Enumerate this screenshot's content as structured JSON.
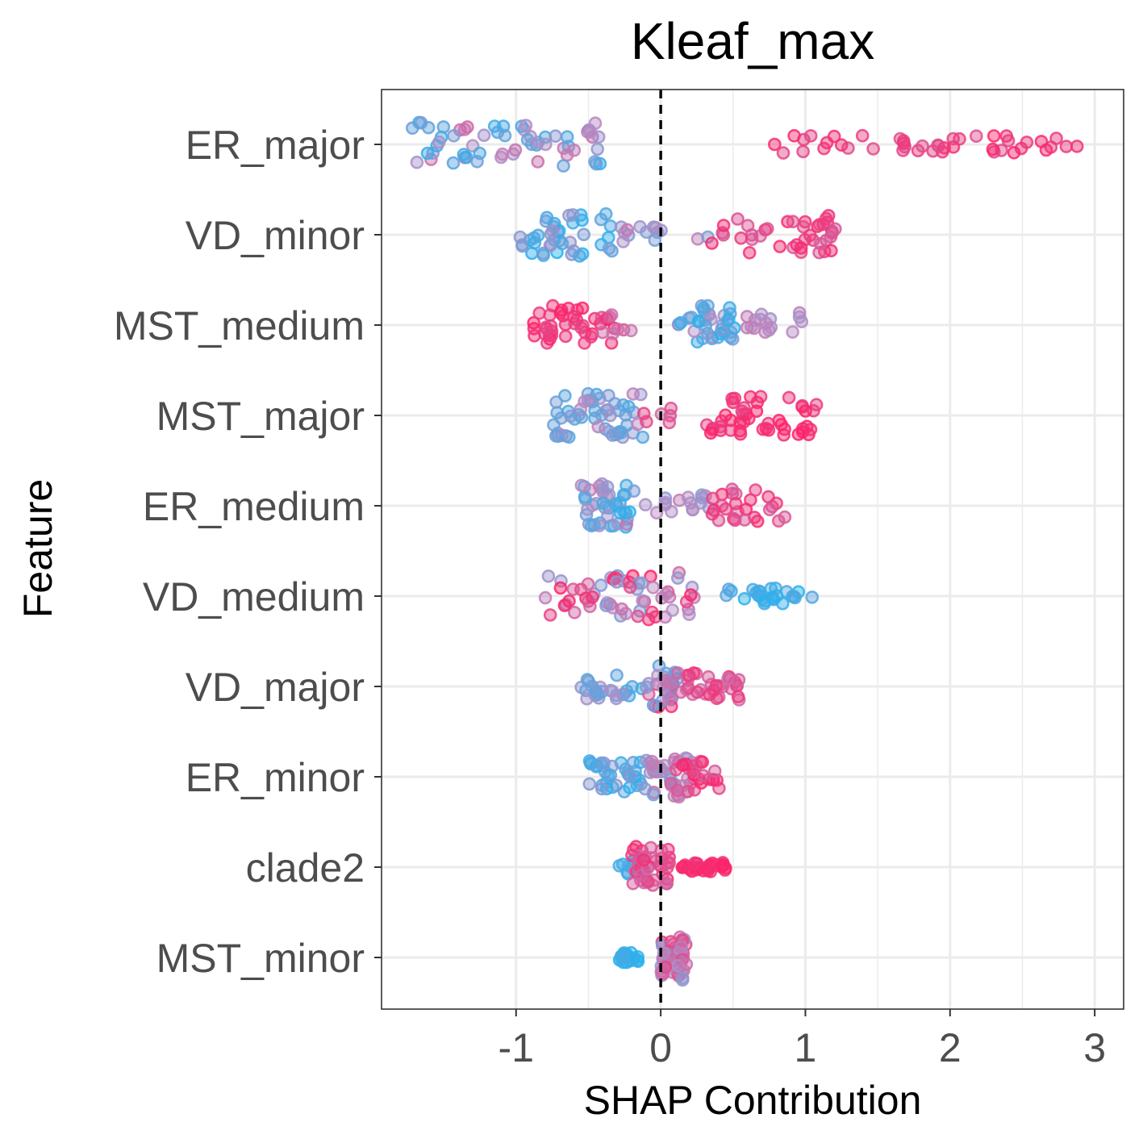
{
  "chart_data": {
    "type": "scatter",
    "subtype": "shap-beeswarm",
    "title": "Kleaf_max",
    "xlabel": "SHAP Contribution",
    "ylabel": "Feature",
    "xlim": [
      -1.93,
      3.2
    ],
    "x_ticks": [
      -1,
      0,
      1,
      2,
      3
    ],
    "x_tick_labels": [
      "-1",
      "0",
      "1",
      "2",
      "3"
    ],
    "reference_line": {
      "x": 0,
      "style": "dashed",
      "color": "#000000"
    },
    "grid": true,
    "legend": "none",
    "color_scale": {
      "low": "#1fb4f0",
      "mid": "#b58cc4",
      "high": "#ff1f66"
    },
    "features": [
      {
        "name": "ER_major",
        "clusters": [
          {
            "x_min": -1.72,
            "x_max": -0.35,
            "n": 60,
            "levels": [
              0.05,
              0.65
            ],
            "spread": 0.4
          },
          {
            "x_min": 0.78,
            "x_max": 2.97,
            "n": 44,
            "levels": [
              0.78,
              0.97
            ],
            "spread": 0.17
          }
        ]
      },
      {
        "name": "VD_minor",
        "clusters": [
          {
            "x_min": -0.98,
            "x_max": -0.33,
            "n": 42,
            "levels": [
              0.0,
              0.45
            ],
            "spread": 0.4
          },
          {
            "x_min": -0.32,
            "x_max": 0.35,
            "n": 14,
            "levels": [
              0.3,
              0.6
            ],
            "spread": 0.15
          },
          {
            "x_min": 0.35,
            "x_max": 1.22,
            "n": 40,
            "levels": [
              0.7,
              0.95
            ],
            "spread": 0.35
          }
        ]
      },
      {
        "name": "MST_medium",
        "clusters": [
          {
            "x_min": -0.88,
            "x_max": -0.3,
            "n": 38,
            "levels": [
              0.82,
              1.0
            ],
            "spread": 0.35
          },
          {
            "x_min": -0.42,
            "x_max": -0.18,
            "n": 8,
            "levels": [
              0.6,
              0.8
            ],
            "spread": 0.2
          },
          {
            "x_min": 0.12,
            "x_max": 0.52,
            "n": 36,
            "levels": [
              0.0,
              0.5
            ],
            "spread": 0.35
          },
          {
            "x_min": 0.55,
            "x_max": 0.98,
            "n": 16,
            "levels": [
              0.4,
              0.6
            ],
            "spread": 0.22
          }
        ]
      },
      {
        "name": "MST_major",
        "clusters": [
          {
            "x_min": -0.74,
            "x_max": -0.12,
            "n": 52,
            "levels": [
              0.05,
              0.55
            ],
            "spread": 0.4
          },
          {
            "x_min": -0.12,
            "x_max": 0.08,
            "n": 6,
            "levels": [
              0.65,
              0.85
            ],
            "spread": 0.15
          },
          {
            "x_min": 0.3,
            "x_max": 1.1,
            "n": 46,
            "levels": [
              0.85,
              1.0
            ],
            "spread": 0.35
          }
        ]
      },
      {
        "name": "ER_medium",
        "clusters": [
          {
            "x_min": -0.55,
            "x_max": -0.18,
            "n": 42,
            "levels": [
              0.0,
              0.6
            ],
            "spread": 0.4
          },
          {
            "x_min": -0.15,
            "x_max": 0.35,
            "n": 16,
            "levels": [
              0.35,
              0.6
            ],
            "spread": 0.2
          },
          {
            "x_min": 0.35,
            "x_max": 0.88,
            "n": 26,
            "levels": [
              0.7,
              0.95
            ],
            "spread": 0.3
          }
        ]
      },
      {
        "name": "VD_medium",
        "clusters": [
          {
            "x_min": -0.8,
            "x_max": 0.25,
            "n": 60,
            "levels": [
              0.3,
              1.0
            ],
            "spread": 0.42
          },
          {
            "x_min": 0.45,
            "x_max": 1.05,
            "n": 26,
            "levels": [
              0.0,
              0.2
            ],
            "spread": 0.15
          }
        ]
      },
      {
        "name": "VD_major",
        "clusters": [
          {
            "x_min": -0.55,
            "x_max": -0.1,
            "n": 24,
            "levels": [
              0.05,
              0.5
            ],
            "spread": 0.22
          },
          {
            "x_min": -0.1,
            "x_max": 0.12,
            "n": 28,
            "levels": [
              0.15,
              0.95
            ],
            "spread": 0.38
          },
          {
            "x_min": 0.1,
            "x_max": 0.55,
            "n": 32,
            "levels": [
              0.6,
              0.95
            ],
            "spread": 0.25
          }
        ]
      },
      {
        "name": "ER_minor",
        "clusters": [
          {
            "x_min": -0.5,
            "x_max": -0.08,
            "n": 36,
            "levels": [
              0.0,
              0.4
            ],
            "spread": 0.3
          },
          {
            "x_min": -0.08,
            "x_max": 0.22,
            "n": 34,
            "levels": [
              0.25,
              0.75
            ],
            "spread": 0.38
          },
          {
            "x_min": 0.1,
            "x_max": 0.42,
            "n": 22,
            "levels": [
              0.7,
              1.0
            ],
            "spread": 0.3
          }
        ]
      },
      {
        "name": "clade2",
        "clusters": [
          {
            "x_min": -0.3,
            "x_max": -0.18,
            "n": 8,
            "levels": [
              0.0,
              0.2
            ],
            "spread": 0.12
          },
          {
            "x_min": -0.2,
            "x_max": 0.06,
            "n": 44,
            "levels": [
              0.6,
              0.95
            ],
            "spread": 0.38
          },
          {
            "x_min": 0.12,
            "x_max": 0.45,
            "n": 30,
            "levels": [
              0.9,
              1.0
            ],
            "spread": 0.08
          }
        ]
      },
      {
        "name": "MST_minor",
        "clusters": [
          {
            "x_min": -0.3,
            "x_max": -0.15,
            "n": 20,
            "levels": [
              0.0,
              0.15
            ],
            "spread": 0.09
          },
          {
            "x_min": 0.0,
            "x_max": 0.18,
            "n": 60,
            "levels": [
              0.35,
              0.85
            ],
            "spread": 0.42
          }
        ]
      }
    ]
  }
}
